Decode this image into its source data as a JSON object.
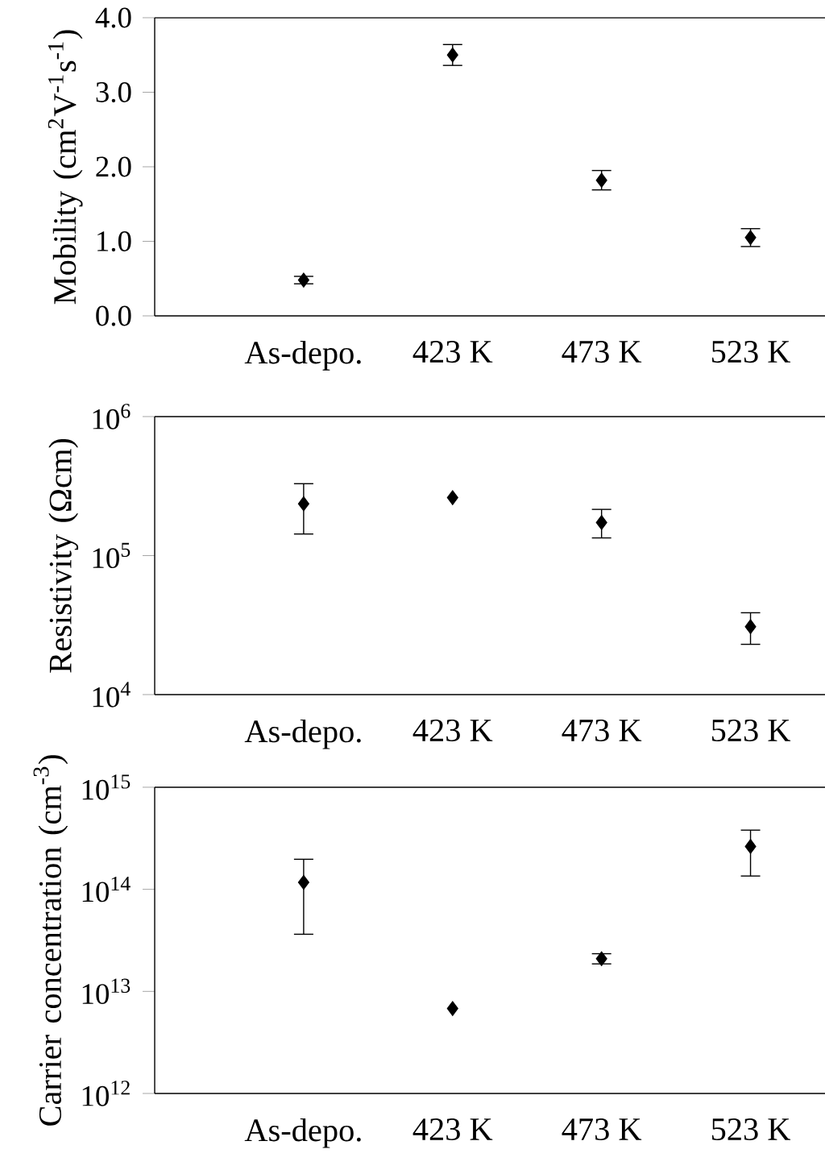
{
  "chart_data": [
    {
      "type": "scatter",
      "ylabel": "Mobility (cm$^{2}$V$^{-1}$s$^{-1}$)",
      "categories": [
        "As-depo.",
        "423 K",
        "473 K",
        "523 K"
      ],
      "values": [
        0.48,
        3.5,
        1.82,
        1.05
      ],
      "errors": [
        0.05,
        0.14,
        0.13,
        0.12
      ],
      "color": "#000000",
      "marker": "diamond",
      "ylim": [
        0,
        4
      ],
      "yticks": [
        {
          "value": 0,
          "label": "0.0"
        },
        {
          "value": 1,
          "label": "1.0"
        },
        {
          "value": 2,
          "label": "2.0"
        },
        {
          "value": 3,
          "label": "3.0"
        },
        {
          "value": 4,
          "label": "4.0"
        }
      ]
    },
    {
      "type": "scatter",
      "ylabel": "Resistivity (Ωcm)",
      "categories": [
        "As-depo.",
        "423 K",
        "473 K",
        "523 K"
      ],
      "values": [
        236000,
        261000,
        173000,
        30800
      ],
      "errors": [
        [
          143000,
          329000
        ],
        null,
        [
          134000,
          215000
        ],
        [
          23000,
          38800
        ]
      ],
      "color": "#000000",
      "marker": "diamond",
      "log": true,
      "ylim": [
        10000,
        1000000
      ],
      "yticks": [
        {
          "value": 10000,
          "label": "10$^{4}$"
        },
        {
          "value": 100000,
          "label": "10$^{5}$"
        },
        {
          "value": 1000000,
          "label": "10$^{6}$"
        }
      ]
    },
    {
      "type": "scatter",
      "ylabel": "Carrier concentration (cm$^{-3}$)",
      "categories": [
        "As-depo.",
        "423 K",
        "473 K",
        "523 K"
      ],
      "values": [
        117000000000000.0,
        6800000000000.0,
        20900000000000.0,
        263000000000000.0
      ],
      "errors": [
        [
          36300000000000.0,
          197000000000000.0
        ],
        null,
        [
          18600000000000.0,
          23400000000000.0
        ],
        [
          135000000000000.0,
          380000000000000.0
        ]
      ],
      "color": "#000000",
      "marker": "diamond",
      "log": true,
      "ylim": [
        1000000000000.0,
        1000000000000000.0
      ],
      "yticks": [
        {
          "value": 1000000000000.0,
          "label": "10$^{12}$"
        },
        {
          "value": 10000000000000.0,
          "label": "10$^{13}$"
        },
        {
          "value": 100000000000000.0,
          "label": "10$^{14}$"
        },
        {
          "value": 1000000000000000.0,
          "label": "10$^{15}$"
        }
      ]
    }
  ]
}
